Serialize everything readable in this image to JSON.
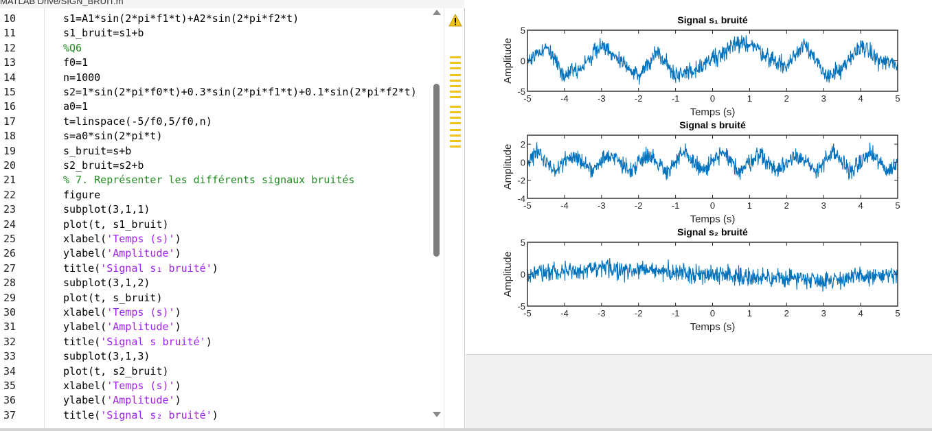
{
  "editor": {
    "path": "MATLAB Drive/SIGN_BRUIT.m",
    "lines": [
      {
        "num": "10",
        "parts": [
          {
            "t": "s1=A1*sin(2*pi*f1*t)+A2*sin(2*pi*f2*t)",
            "c": ""
          }
        ]
      },
      {
        "num": "11",
        "parts": [
          {
            "t": "s1_bruit=s1+b",
            "c": ""
          }
        ]
      },
      {
        "num": "12",
        "parts": [
          {
            "t": "%Q6",
            "c": "cm"
          }
        ]
      },
      {
        "num": "13",
        "parts": [
          {
            "t": "f0=1",
            "c": ""
          }
        ]
      },
      {
        "num": "14",
        "parts": [
          {
            "t": "n=1000",
            "c": ""
          }
        ]
      },
      {
        "num": "15",
        "parts": [
          {
            "t": "s2=1*sin(2*pi*f0*t)+0.3*sin(2*pi*f1*t)+0.1*sin(2*pi*f2*t)",
            "c": ""
          }
        ]
      },
      {
        "num": "16",
        "parts": [
          {
            "t": "a0=1",
            "c": ""
          }
        ]
      },
      {
        "num": "17",
        "parts": [
          {
            "t": "t=linspace(-5/f0,5/f0,n)",
            "c": ""
          }
        ]
      },
      {
        "num": "18",
        "parts": [
          {
            "t": "s=a0*sin(2*pi*t)",
            "c": ""
          }
        ]
      },
      {
        "num": "19",
        "parts": [
          {
            "t": "s_bruit=s+b",
            "c": ""
          }
        ]
      },
      {
        "num": "20",
        "parts": [
          {
            "t": "s2_bruit=s2+b",
            "c": ""
          }
        ]
      },
      {
        "num": "21",
        "parts": [
          {
            "t": "% 7. Représenter les différents signaux bruités",
            "c": "cm"
          }
        ]
      },
      {
        "num": "22",
        "parts": [
          {
            "t": "figure",
            "c": ""
          }
        ]
      },
      {
        "num": "23",
        "parts": [
          {
            "t": "subplot(3,1,1)",
            "c": ""
          }
        ]
      },
      {
        "num": "24",
        "parts": [
          {
            "t": "plot(t, s1_bruit)",
            "c": ""
          }
        ]
      },
      {
        "num": "25",
        "parts": [
          {
            "t": "xlabel(",
            "c": ""
          },
          {
            "t": "'Temps (s)'",
            "c": "str"
          },
          {
            "t": ")",
            "c": ""
          }
        ]
      },
      {
        "num": "26",
        "parts": [
          {
            "t": "ylabel(",
            "c": ""
          },
          {
            "t": "'Amplitude'",
            "c": "str"
          },
          {
            "t": ")",
            "c": ""
          }
        ]
      },
      {
        "num": "27",
        "parts": [
          {
            "t": "title(",
            "c": ""
          },
          {
            "t": "'Signal s₁ bruité'",
            "c": "str"
          },
          {
            "t": ")",
            "c": ""
          }
        ]
      },
      {
        "num": "28",
        "parts": [
          {
            "t": "subplot(3,1,2)",
            "c": ""
          }
        ]
      },
      {
        "num": "29",
        "parts": [
          {
            "t": "plot(t, s_bruit)",
            "c": ""
          }
        ]
      },
      {
        "num": "30",
        "parts": [
          {
            "t": "xlabel(",
            "c": ""
          },
          {
            "t": "'Temps (s)'",
            "c": "str"
          },
          {
            "t": ")",
            "c": ""
          }
        ]
      },
      {
        "num": "31",
        "parts": [
          {
            "t": "ylabel(",
            "c": ""
          },
          {
            "t": "'Amplitude'",
            "c": "str"
          },
          {
            "t": ")",
            "c": ""
          }
        ]
      },
      {
        "num": "32",
        "parts": [
          {
            "t": "title(",
            "c": ""
          },
          {
            "t": "'Signal s bruité'",
            "c": "str"
          },
          {
            "t": ")",
            "c": ""
          }
        ]
      },
      {
        "num": "33",
        "parts": [
          {
            "t": "subplot(3,1,3)",
            "c": ""
          }
        ]
      },
      {
        "num": "34",
        "parts": [
          {
            "t": "plot(t, s2_bruit)",
            "c": ""
          }
        ]
      },
      {
        "num": "35",
        "parts": [
          {
            "t": "xlabel(",
            "c": ""
          },
          {
            "t": "'Temps (s)'",
            "c": "str"
          },
          {
            "t": ")",
            "c": ""
          }
        ]
      },
      {
        "num": "36",
        "parts": [
          {
            "t": "ylabel(",
            "c": ""
          },
          {
            "t": "'Amplitude'",
            "c": "str"
          },
          {
            "t": ")",
            "c": ""
          }
        ]
      },
      {
        "num": "37",
        "parts": [
          {
            "t": "title(",
            "c": ""
          },
          {
            "t": "'Signal s₂ bruité'",
            "c": "str"
          },
          {
            "t": ")",
            "c": ""
          }
        ]
      }
    ],
    "warning_icon": "warning-triangle-icon",
    "colors": {
      "comment": "#228B22",
      "string": "#A020F0",
      "warning": "#f0c419"
    }
  },
  "chart_data": [
    {
      "type": "line",
      "title": "Signal s₁ bruité",
      "xlabel": "Temps (s)",
      "ylabel": "Amplitude",
      "xlim": [
        -5,
        5
      ],
      "ylim": [
        -5,
        5
      ],
      "xticks": [
        "-5",
        "-4",
        "-3",
        "-2",
        "-1",
        "0",
        "1",
        "2",
        "3",
        "4",
        "5"
      ],
      "yticks": [
        "-5",
        "0",
        "5"
      ],
      "color": "#0072BD",
      "series": [
        {
          "x": [
            -5,
            -4.5,
            -4,
            -3.5,
            -3,
            -2.5,
            -2,
            -1.5,
            -1,
            -0.5,
            0,
            0.5,
            1,
            1.5,
            2,
            2.5,
            3,
            3.5,
            4,
            4.5,
            5
          ],
          "y": [
            0,
            2.3,
            -2.2,
            -1,
            2.8,
            -0.2,
            -2.6,
            1.6,
            -2.5,
            -1.5,
            0.4,
            2.2,
            3,
            0.6,
            -1,
            3.2,
            -2.4,
            -1.6,
            2.6,
            0,
            -0.6
          ]
        }
      ]
    },
    {
      "type": "line",
      "title": "Signal s bruité",
      "xlabel": "Temps (s)",
      "ylabel": "Amplitude",
      "xlim": [
        -5,
        5
      ],
      "ylim": [
        -4,
        3
      ],
      "xticks": [
        "-5",
        "-4",
        "-3",
        "-2",
        "-1",
        "0",
        "1",
        "2",
        "3",
        "4",
        "5"
      ],
      "yticks": [
        "-4",
        "-2",
        "0",
        "2"
      ],
      "color": "#0072BD",
      "series": [
        {
          "x": [
            -5,
            -4.75,
            -4.5,
            -4.25,
            -4,
            -3.75,
            -3.5,
            -3.25,
            -3,
            -2.75,
            -2.5,
            -2.25,
            -2,
            -1.75,
            -1.5,
            -1.25,
            -1,
            -0.75,
            -0.5,
            -0.25,
            0,
            0.25,
            0.5,
            0.75,
            1,
            1.25,
            1.5,
            1.75,
            2,
            2.25,
            2.5,
            2.75,
            3,
            3.25,
            3.5,
            3.75,
            4,
            4.25,
            4.5,
            4.75,
            5
          ],
          "y": [
            0,
            1,
            0,
            -1,
            0,
            1,
            0,
            -1,
            0,
            1,
            0,
            -1,
            0,
            1,
            0,
            -1,
            0,
            1,
            0,
            -1,
            0,
            1,
            0,
            -1,
            0,
            1,
            0,
            -1,
            0,
            1,
            0,
            -1,
            0,
            1,
            0,
            -1,
            0,
            1,
            0,
            -1,
            0
          ]
        }
      ]
    },
    {
      "type": "line",
      "title": "Signal s₂ bruité",
      "xlabel": "Temps (s)",
      "ylabel": "Amplitude",
      "xlim": [
        -5,
        5
      ],
      "ylim": [
        -5,
        5
      ],
      "xticks": [
        "-5",
        "-4",
        "-3",
        "-2",
        "-1",
        "0",
        "1",
        "2",
        "3",
        "4",
        "5"
      ],
      "yticks": [
        "-5",
        "0",
        "5"
      ],
      "color": "#0072BD",
      "series": [
        {
          "x": [
            -5,
            -4.5,
            -4,
            -3.5,
            -3,
            -2.5,
            -2,
            -1.5,
            -1,
            -0.5,
            0,
            0.5,
            1,
            1.5,
            2,
            2.5,
            3,
            3.5,
            4,
            4.5,
            5
          ],
          "y": [
            0,
            0.3,
            0.6,
            0.3,
            1,
            0.6,
            0.8,
            0.4,
            0.3,
            0.1,
            0,
            -0.1,
            -0.4,
            -0.8,
            -0.5,
            -0.6,
            -1,
            -0.7,
            -0.4,
            -0.3,
            -0.2
          ]
        }
      ]
    }
  ]
}
